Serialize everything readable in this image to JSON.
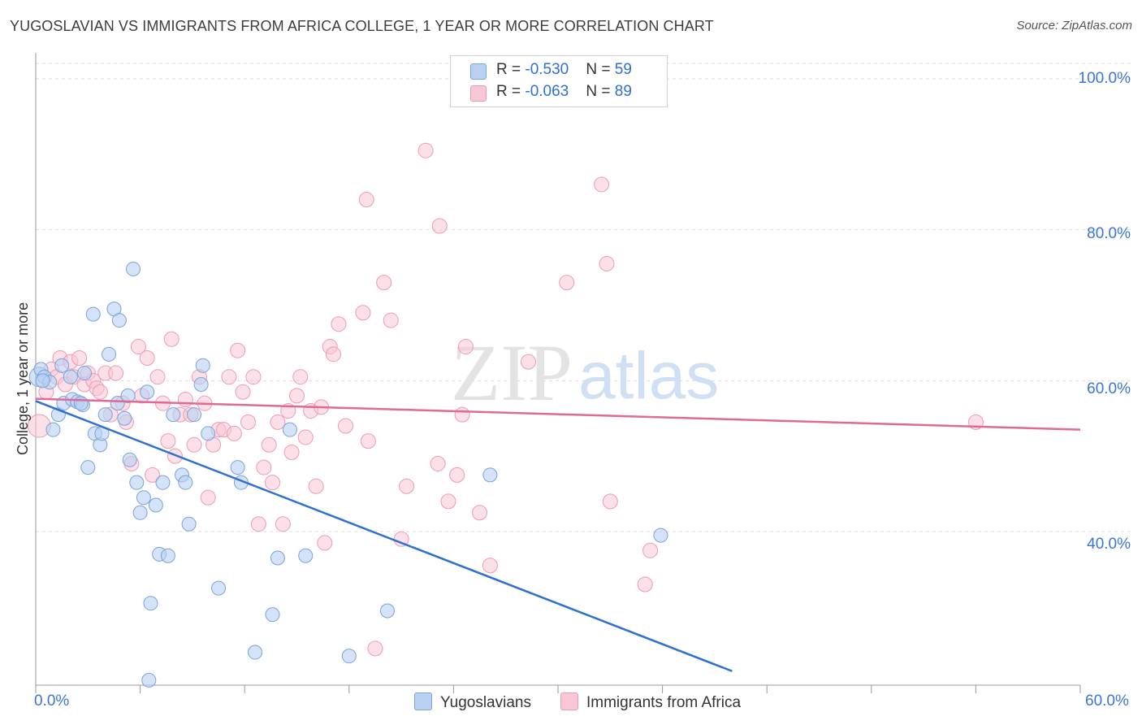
{
  "title": "YUGOSLAVIAN VS IMMIGRANTS FROM AFRICA COLLEGE, 1 YEAR OR MORE CORRELATION CHART",
  "source": "Source: ZipAtlas.com",
  "watermark": {
    "zip": "ZIP",
    "atlas": "atlas"
  },
  "colors": {
    "blue_fill": "#b8d0f2",
    "blue_stroke": "#7aa2dd",
    "blue_line": "#2e6fd0",
    "pink_fill": "#f8c6d4",
    "pink_stroke": "#ee9ab3",
    "pink_line": "#e06a95",
    "tick_text": "#3a76d4",
    "grid": "#dddddd"
  },
  "stats": [
    {
      "r_label": "R = ",
      "r_value": "-0.530",
      "n_label": "N = ",
      "n_value": "59"
    },
    {
      "r_label": "R = ",
      "r_value": "-0.063",
      "n_label": "N = ",
      "n_value": "89"
    }
  ],
  "legend": {
    "series1": "Yugoslavians",
    "series2": "Immigrants from Africa"
  },
  "axes": {
    "ylabel": "College, 1 year or more",
    "x_min_label": "0.0%",
    "x_max_label": "60.0%",
    "y_tick_labels": [
      "100.0%",
      "80.0%",
      "60.0%",
      "40.0%"
    ]
  },
  "chart_data": {
    "type": "scatter",
    "title": "YUGOSLAVIAN VS IMMIGRANTS FROM AFRICA COLLEGE, 1 YEAR OR MORE CORRELATION CHART",
    "xlabel": "",
    "ylabel": "College, 1 year or more",
    "xlim": [
      0,
      60
    ],
    "ylim": [
      20,
      103
    ],
    "x_unit": "%",
    "y_unit": "%",
    "y_ticks": [
      40,
      60,
      80,
      100
    ],
    "grid": "horizontal dashed",
    "legend_position": "bottom-center",
    "series": [
      {
        "name": "Yugoslavians",
        "r": -0.53,
        "n": 59,
        "trend": {
          "x": [
            0,
            40
          ],
          "y": [
            57.3,
            21.5
          ]
        },
        "points": [
          [
            0.2,
            60.5
          ],
          [
            0.3,
            61.5
          ],
          [
            0.5,
            60.5
          ],
          [
            0.8,
            59.8
          ],
          [
            1.0,
            53.5
          ],
          [
            1.3,
            55.5
          ],
          [
            1.5,
            62.0
          ],
          [
            1.6,
            57.0
          ],
          [
            2.0,
            60.5
          ],
          [
            2.1,
            57.5
          ],
          [
            2.4,
            57.2
          ],
          [
            2.7,
            56.8
          ],
          [
            2.8,
            61.0
          ],
          [
            3.0,
            48.5
          ],
          [
            3.3,
            68.8
          ],
          [
            3.4,
            53.0
          ],
          [
            3.7,
            51.5
          ],
          [
            3.8,
            53.0
          ],
          [
            4.0,
            55.5
          ],
          [
            4.2,
            63.5
          ],
          [
            4.5,
            69.5
          ],
          [
            4.7,
            57.0
          ],
          [
            4.8,
            68.0
          ],
          [
            5.1,
            55.0
          ],
          [
            5.3,
            58.0
          ],
          [
            5.4,
            49.5
          ],
          [
            5.6,
            74.8
          ],
          [
            5.8,
            46.5
          ],
          [
            6.0,
            42.5
          ],
          [
            6.2,
            44.5
          ],
          [
            6.4,
            58.5
          ],
          [
            6.6,
            30.5
          ],
          [
            6.9,
            43.5
          ],
          [
            7.1,
            37.0
          ],
          [
            7.3,
            46.5
          ],
          [
            7.6,
            36.8
          ],
          [
            7.9,
            55.5
          ],
          [
            8.4,
            47.5
          ],
          [
            8.6,
            46.5
          ],
          [
            8.8,
            41.0
          ],
          [
            9.1,
            55.5
          ],
          [
            9.5,
            59.5
          ],
          [
            9.6,
            62.0
          ],
          [
            9.9,
            53.0
          ],
          [
            10.5,
            32.5
          ],
          [
            11.6,
            48.5
          ],
          [
            11.8,
            46.5
          ],
          [
            12.6,
            24.0
          ],
          [
            13.6,
            29.0
          ],
          [
            13.9,
            36.5
          ],
          [
            14.6,
            53.5
          ],
          [
            15.5,
            36.8
          ],
          [
            18.0,
            23.5
          ],
          [
            20.2,
            29.5
          ],
          [
            26.1,
            47.5
          ],
          [
            35.9,
            39.5
          ],
          [
            6.5,
            20.3
          ],
          [
            0.4,
            60.0
          ],
          [
            2.6,
            57.0
          ]
        ]
      },
      {
        "name": "Immigrants from Africa",
        "r": -0.063,
        "n": 89,
        "trend": {
          "x": [
            0,
            60
          ],
          "y": [
            57.6,
            53.5
          ]
        },
        "points": [
          [
            0.2,
            54.0
          ],
          [
            0.6,
            58.5
          ],
          [
            0.9,
            61.5
          ],
          [
            1.2,
            60.5
          ],
          [
            1.4,
            63.0
          ],
          [
            1.7,
            59.5
          ],
          [
            2.0,
            62.5
          ],
          [
            2.2,
            60.5
          ],
          [
            2.5,
            63.0
          ],
          [
            2.8,
            59.5
          ],
          [
            3.0,
            61.0
          ],
          [
            3.3,
            60.0
          ],
          [
            3.5,
            59.0
          ],
          [
            3.7,
            58.5
          ],
          [
            4.0,
            61.0
          ],
          [
            4.3,
            55.5
          ],
          [
            4.6,
            61.0
          ],
          [
            5.0,
            57.0
          ],
          [
            5.2,
            54.5
          ],
          [
            5.5,
            49.0
          ],
          [
            5.9,
            64.5
          ],
          [
            6.1,
            58.0
          ],
          [
            6.4,
            63.0
          ],
          [
            6.7,
            47.5
          ],
          [
            7.0,
            60.5
          ],
          [
            7.3,
            57.0
          ],
          [
            7.6,
            52.0
          ],
          [
            7.8,
            65.5
          ],
          [
            8.0,
            50.0
          ],
          [
            8.3,
            55.5
          ],
          [
            8.6,
            57.5
          ],
          [
            8.9,
            55.5
          ],
          [
            9.1,
            51.5
          ],
          [
            9.4,
            60.5
          ],
          [
            9.7,
            57.0
          ],
          [
            9.9,
            44.5
          ],
          [
            10.2,
            51.5
          ],
          [
            10.5,
            53.5
          ],
          [
            10.8,
            53.5
          ],
          [
            11.1,
            60.5
          ],
          [
            11.4,
            53.0
          ],
          [
            11.6,
            64.0
          ],
          [
            11.9,
            58.5
          ],
          [
            12.2,
            54.5
          ],
          [
            12.5,
            60.5
          ],
          [
            12.8,
            41.0
          ],
          [
            13.1,
            48.5
          ],
          [
            13.4,
            51.5
          ],
          [
            13.6,
            46.5
          ],
          [
            13.9,
            54.5
          ],
          [
            14.2,
            41.0
          ],
          [
            14.5,
            56.0
          ],
          [
            14.7,
            50.5
          ],
          [
            15.0,
            58.0
          ],
          [
            15.2,
            60.5
          ],
          [
            15.5,
            52.5
          ],
          [
            15.8,
            56.0
          ],
          [
            16.1,
            46.0
          ],
          [
            16.4,
            56.5
          ],
          [
            16.6,
            38.5
          ],
          [
            16.9,
            64.5
          ],
          [
            17.1,
            63.5
          ],
          [
            17.4,
            67.5
          ],
          [
            17.8,
            54.0
          ],
          [
            18.8,
            69.0
          ],
          [
            19.0,
            84.0
          ],
          [
            19.1,
            52.0
          ],
          [
            19.5,
            24.5
          ],
          [
            20.0,
            73.0
          ],
          [
            20.4,
            68.0
          ],
          [
            21.3,
            46.0
          ],
          [
            22.4,
            90.5
          ],
          [
            23.1,
            49.0
          ],
          [
            23.2,
            80.5
          ],
          [
            23.7,
            44.0
          ],
          [
            24.2,
            47.5
          ],
          [
            24.5,
            55.5
          ],
          [
            24.7,
            64.5
          ],
          [
            25.5,
            42.5
          ],
          [
            26.1,
            35.5
          ],
          [
            28.3,
            62.5
          ],
          [
            30.5,
            73.0
          ],
          [
            32.5,
            86.0
          ],
          [
            32.8,
            75.5
          ],
          [
            33.0,
            44.0
          ],
          [
            35.0,
            33.0
          ],
          [
            35.3,
            37.5
          ],
          [
            54.0,
            54.5
          ],
          [
            21.0,
            39.0
          ]
        ]
      }
    ]
  }
}
